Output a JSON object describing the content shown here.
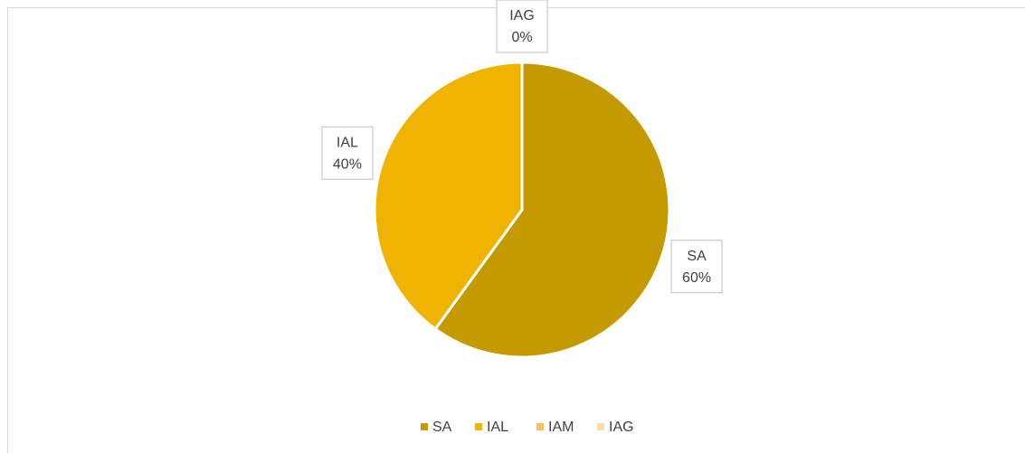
{
  "chart_data": {
    "type": "pie",
    "categories": [
      "SA",
      "IAL",
      "IAM",
      "IAG"
    ],
    "values": [
      60,
      40,
      0,
      0
    ],
    "value_labels": [
      "60%",
      "40%",
      null,
      "0%"
    ],
    "colors": [
      "#c59a00",
      "#f0b400",
      "#f5c462",
      "#f8dca0"
    ],
    "legend": "bottom"
  }
}
